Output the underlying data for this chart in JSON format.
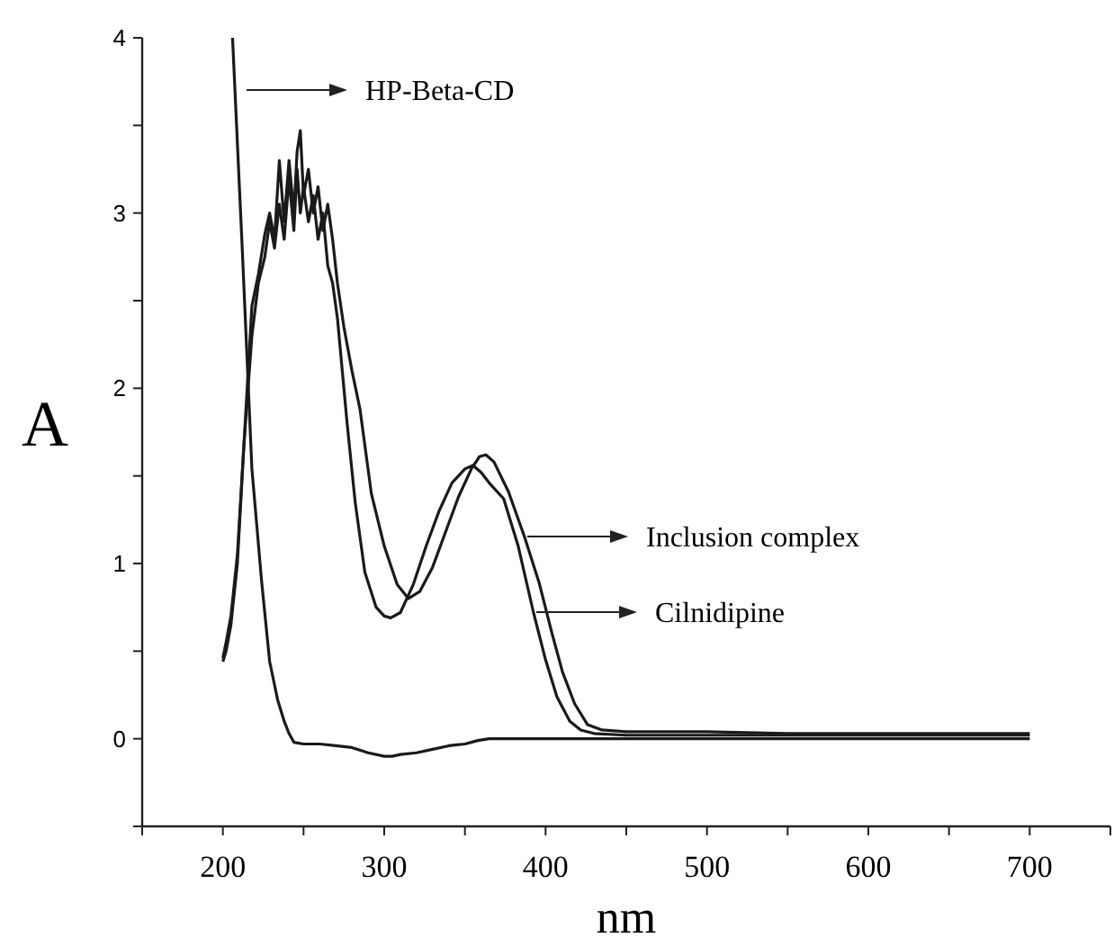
{
  "chart_data": {
    "type": "line",
    "xlabel": "nm",
    "ylabel": "A",
    "xlim": [
      150,
      750
    ],
    "ylim": [
      -0.5,
      4
    ],
    "xticks": [
      {
        "value": 150,
        "label": null
      },
      200,
      {
        "value": 250,
        "label": null
      },
      300,
      {
        "value": 350,
        "label": null
      },
      400,
      {
        "value": 450,
        "label": null
      },
      500,
      {
        "value": 550,
        "label": null
      },
      600,
      {
        "value": 650,
        "label": null
      },
      700,
      {
        "value": 750,
        "label": null
      }
    ],
    "yticks": [
      {
        "value": -0.5,
        "label": null
      },
      0,
      {
        "value": 0.5,
        "label": null
      },
      1,
      {
        "value": 1.5,
        "label": null
      },
      2,
      {
        "value": 2.5,
        "label": null
      },
      3,
      {
        "value": 3.5,
        "label": null
      },
      4
    ],
    "grid": false,
    "marker": "none",
    "line_style": "solid",
    "series": [
      {
        "color": "#1a1a1a",
        "x": [
          206,
          212,
          218,
          224,
          229,
          234,
          238,
          241,
          244,
          250,
          260,
          270,
          280,
          290,
          300,
          305,
          310,
          320,
          330,
          340,
          350,
          358,
          365,
          380,
          400,
          450,
          500,
          550,
          600,
          650,
          700
        ],
        "values": [
          4,
          2.8,
          1.54,
          0.9,
          0.44,
          0.22,
          0.1,
          0.03,
          -0.02,
          -0.03,
          -0.03,
          -0.04,
          -0.05,
          -0.08,
          -0.1,
          -0.1,
          -0.09,
          -0.08,
          -0.06,
          -0.04,
          -0.03,
          -0.01,
          0,
          0,
          0,
          0,
          0,
          0,
          0,
          0,
          0
        ]
      },
      {
        "color": "#1a1a1a",
        "x": [
          200,
          202,
          205,
          209,
          213,
          218,
          222,
          226,
          229,
          232,
          235,
          238,
          241,
          244,
          246,
          248,
          250,
          253,
          256,
          259,
          262,
          265,
          268,
          271,
          274,
          277,
          282,
          288,
          295,
          300,
          304,
          310,
          318,
          326,
          334,
          342,
          350,
          355,
          360,
          366,
          374,
          383,
          392.5,
          400,
          407,
          415,
          421.8,
          430,
          450,
          500,
          550,
          600,
          650,
          700
        ],
        "values": [
          0.44,
          0.5,
          0.65,
          1.0,
          1.67,
          2.3,
          2.6,
          2.75,
          2.95,
          2.8,
          3.05,
          2.85,
          3.2,
          2.9,
          3.25,
          3.0,
          3.15,
          2.95,
          3.1,
          2.85,
          3.0,
          2.7,
          2.6,
          2.4,
          2.1,
          1.8,
          1.35,
          0.95,
          0.75,
          0.7,
          0.69,
          0.72,
          0.88,
          1.1,
          1.3,
          1.46,
          1.54,
          1.56,
          1.52,
          1.45,
          1.37,
          1.1,
          0.72,
          0.45,
          0.24,
          0.1,
          0.05,
          0.03,
          0.02,
          0.02,
          0.02,
          0.02,
          0.02,
          0.02
        ]
      },
      {
        "color": "#1a1a1a",
        "x": [
          200,
          202,
          205,
          209,
          213,
          218,
          222,
          226,
          229,
          232,
          235,
          238,
          241,
          244,
          246,
          248,
          250,
          253,
          256,
          259,
          262,
          265,
          268,
          271,
          275,
          280,
          285,
          292,
          300,
          308,
          315,
          322,
          330,
          338,
          346,
          354,
          359,
          363,
          368,
          377,
          387,
          396,
          404,
          410.5,
          418,
          426,
          435,
          450,
          500,
          550,
          600,
          650,
          700
        ],
        "values": [
          0.46,
          0.55,
          0.7,
          1.05,
          1.67,
          2.47,
          2.65,
          2.88,
          3.0,
          2.85,
          3.3,
          2.95,
          3.3,
          3.0,
          3.35,
          3.47,
          3.1,
          3.25,
          3.0,
          3.15,
          2.9,
          3.05,
          2.85,
          2.6,
          2.35,
          2.1,
          1.88,
          1.4,
          1.1,
          0.88,
          0.8,
          0.84,
          0.98,
          1.18,
          1.38,
          1.54,
          1.61,
          1.62,
          1.58,
          1.41,
          1.15,
          0.89,
          0.6,
          0.38,
          0.2,
          0.08,
          0.05,
          0.04,
          0.04,
          0.03,
          0.03,
          0.03,
          0.03
        ]
      }
    ],
    "annotations": [
      "HP-Beta-CD",
      "Inclusion complex",
      "Cilnidipine"
    ]
  }
}
